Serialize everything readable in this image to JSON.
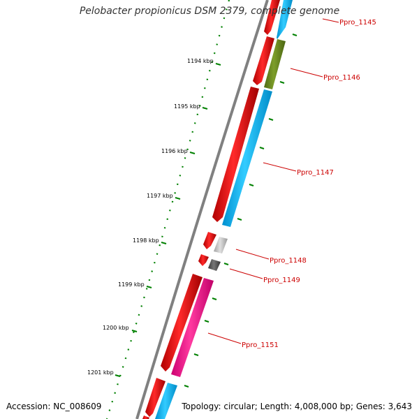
{
  "title": "Pelobacter propionicus DSM 2379, complete genome",
  "footer": {
    "accession": "Accession: NC_008609",
    "summary": "Topology: circular; Length: 4,008,000 bp; Genes: 3,643"
  },
  "colors": {
    "backbone": "#808080",
    "forward_cds": "#ff0000",
    "cog_blue": "#00bfff",
    "cog_olive": "#6b8e23",
    "cog_pink": "#ff1493",
    "cog_light_gray": "#c8c8c8",
    "cog_dark_gray": "#555555",
    "ruler": "#008000",
    "label": "#cc0000"
  },
  "ruler_labels": [
    "1194 kbp",
    "1195 kbp",
    "1196 kbp",
    "1197 kbp",
    "1198 kbp",
    "1199 kbp",
    "1200 kbp",
    "1201 kbp"
  ],
  "gene_labels": [
    "Ppro_1145",
    "Ppro_1146",
    "Ppro_1147",
    "Ppro_1148",
    "Ppro_1149",
    "Ppro_1151"
  ]
}
